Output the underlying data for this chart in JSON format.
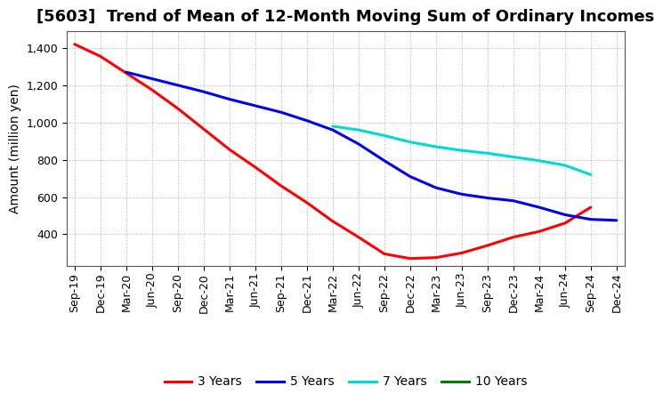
{
  "title": "[5603]  Trend of Mean of 12-Month Moving Sum of Ordinary Incomes",
  "ylabel": "Amount (million yen)",
  "background_color": "#ffffff",
  "grid_color": "#b0b0b0",
  "tick_labels": [
    "Sep-19",
    "Dec-19",
    "Mar-20",
    "Jun-20",
    "Sep-20",
    "Dec-20",
    "Mar-21",
    "Jun-21",
    "Sep-21",
    "Dec-21",
    "Mar-22",
    "Jun-22",
    "Sep-22",
    "Dec-22",
    "Mar-23",
    "Jun-23",
    "Sep-23",
    "Dec-23",
    "Mar-24",
    "Jun-24",
    "Sep-24",
    "Dec-24"
  ],
  "series": {
    "3 Years": {
      "color": "#ff0000",
      "values": [
        1420,
        1355,
        1265,
        1175,
        1075,
        965,
        855,
        760,
        660,
        570,
        470,
        385,
        295,
        270,
        275,
        300,
        340,
        385,
        415,
        460,
        545,
        null
      ]
    },
    "5 Years": {
      "color": "#0000ee",
      "values": [
        null,
        null,
        1270,
        1235,
        1200,
        1165,
        1125,
        1090,
        1055,
        1010,
        960,
        885,
        795,
        710,
        650,
        615,
        595,
        580,
        545,
        505,
        480,
        475
      ]
    },
    "7 Years": {
      "color": "#00d8d8",
      "values": [
        null,
        null,
        null,
        null,
        null,
        null,
        null,
        null,
        null,
        null,
        980,
        960,
        930,
        895,
        870,
        850,
        835,
        815,
        795,
        770,
        720,
        null
      ]
    },
    "10 Years": {
      "color": "#008000",
      "values": [
        null,
        null,
        null,
        null,
        null,
        null,
        null,
        null,
        null,
        null,
        null,
        null,
        null,
        null,
        null,
        null,
        null,
        null,
        null,
        null,
        null,
        null
      ]
    }
  },
  "ylim": [
    230,
    1490
  ],
  "yticks": [
    400,
    600,
    800,
    1000,
    1200,
    1400
  ],
  "title_fontsize": 13,
  "axis_fontsize": 10,
  "tick_fontsize": 9,
  "line_width": 2.2
}
